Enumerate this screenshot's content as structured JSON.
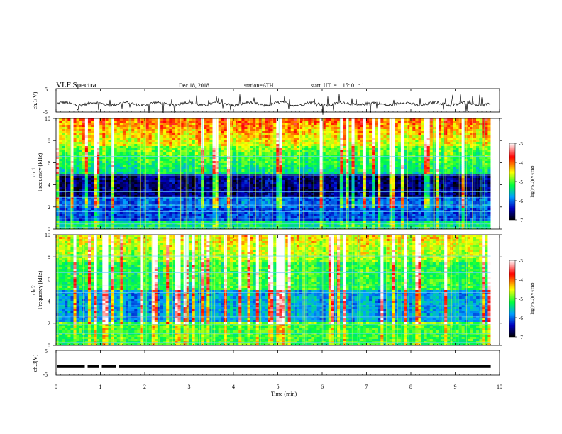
{
  "chart_data": {
    "type": "heatmap",
    "title": "VLF  Spectra",
    "date": "Dec.18, 2018",
    "station": "station=ATH",
    "start_time": "start  UT  =    15: 0   : 1",
    "xlabel": "Time  (min)",
    "x_ticks": [
      "0",
      "1",
      "2",
      "3",
      "4",
      "5",
      "6",
      "7",
      "8",
      "9",
      "10"
    ],
    "xlim": [
      0,
      10
    ],
    "data_end_min": 9.8,
    "panels": [
      {
        "name": "ch1-waveform",
        "ylabel": "ch.1(V)",
        "ylim": [
          -5,
          5
        ],
        "y_ticks": [
          "5",
          "-5"
        ],
        "baseline": -1.5
      },
      {
        "name": "ch1-spectrogram",
        "ylabel_top": "ch.1",
        "ylabel": "Frequency  (kHz)",
        "ylim": [
          0,
          10
        ],
        "y_ticks": [
          "0",
          "2",
          "4",
          "6",
          "8",
          "10"
        ]
      },
      {
        "name": "ch2-spectrogram",
        "ylabel_top": "ch.2",
        "ylabel": "Frequency  (kHz)",
        "ylim": [
          0,
          10
        ],
        "y_ticks": [
          "0",
          "2",
          "4",
          "6",
          "8",
          "10"
        ]
      },
      {
        "name": "ch3-waveform",
        "ylabel": "ch.3(V)",
        "ylim": [
          -5,
          5
        ],
        "y_ticks": [
          "5",
          "-5"
        ],
        "baseline": -1.5,
        "gaps_min": [
          0.68,
          1.0,
          1.38
        ]
      }
    ],
    "colorbar": {
      "label": "log(PSD)(V²/Hz)",
      "range": [
        -7,
        -3
      ],
      "ticks": [
        "-3",
        "-4",
        "-5",
        "-6",
        "-7"
      ],
      "colors": [
        "#ffffff",
        "#ff0000",
        "#ffff00",
        "#00ff40",
        "#00a0ff",
        "#0000c0",
        "#000000"
      ]
    }
  }
}
